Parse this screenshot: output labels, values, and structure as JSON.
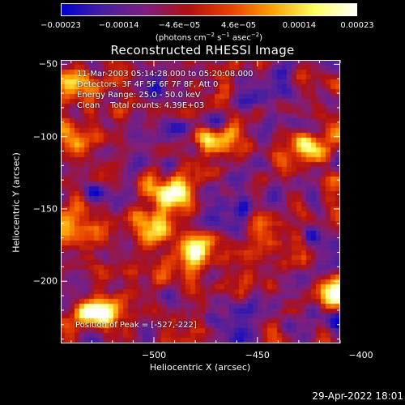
{
  "chart_data": {
    "type": "heatmap",
    "title": "Reconstructed RHESSI Image",
    "xlabel": "Heliocentric X (arcsec)",
    "ylabel": "Heliocentric Y (arcsec)",
    "xlim": [
      -545,
      -410
    ],
    "ylim": [
      -243,
      -47
    ],
    "xticks": [
      -500,
      -450,
      -400
    ],
    "xtick_labels": [
      "−500",
      "−450",
      "−400"
    ],
    "yticks": [
      -50,
      -100,
      -150,
      -200
    ],
    "ytick_labels": [
      "−50",
      "−100",
      "−150",
      "−200"
    ],
    "colorbar": {
      "ticks": [
        -0.00023,
        -0.00014,
        -4.6e-05,
        4.6e-05,
        0.00014,
        0.00023
      ],
      "tick_labels": [
        "−0.00023",
        "−0.00014",
        "−4.6e−05",
        "4.6e−05",
        "0.00014",
        "0.00023"
      ],
      "unit_parts": [
        "(photons cm",
        "−2",
        " s",
        "−1",
        " asec",
        "−2",
        ")"
      ],
      "range": [
        -0.00023,
        0.00023
      ],
      "colors": [
        "#0000d0",
        "#4a1fa0",
        "#7d1f80",
        "#b01010",
        "#e84000",
        "#ffa000",
        "#ffff60",
        "#ffffff"
      ]
    },
    "annotations": [
      "11-Mar-2003 05:14:28.000 to 05:20:08.000",
      "Detectors: 3F 4F 5F 6F 7F 8F, Att 0",
      "Energy Range: 25.0 - 50.0 keV",
      "Clean    Total counts: 4.39E+03"
    ],
    "peak_label": "Position of Peak = [-527,-222]",
    "peak": [
      -527,
      -222
    ],
    "bright_sources": [
      {
        "x": -527,
        "y": -222,
        "strength": 1.0
      },
      {
        "x": -490,
        "y": -137,
        "strength": 0.85
      },
      {
        "x": -425,
        "y": -110,
        "strength": 0.8
      },
      {
        "x": -537,
        "y": -100,
        "strength": 0.75
      },
      {
        "x": -480,
        "y": -180,
        "strength": 0.7
      },
      {
        "x": -500,
        "y": -160,
        "strength": 0.65
      },
      {
        "x": -537,
        "y": -65,
        "strength": 0.6
      },
      {
        "x": -410,
        "y": -210,
        "strength": 0.6
      },
      {
        "x": -470,
        "y": -105,
        "strength": 0.5
      },
      {
        "x": -445,
        "y": -165,
        "strength": 0.45
      },
      {
        "x": -535,
        "y": -165,
        "strength": 0.45
      }
    ]
  },
  "timestamp": "29-Apr-2022 18:01"
}
